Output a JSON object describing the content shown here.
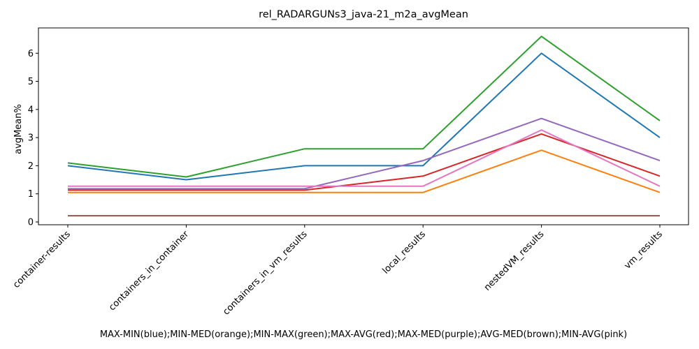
{
  "chart_data": {
    "type": "line",
    "title": "rel_RADARGUNs3_java-21_m2a_avgMean",
    "xlabel": "MAX-MIN(blue);MIN-MED(orange);MIN-MAX(green);MAX-AVG(red);MAX-MED(purple);AVG-MED(brown);MIN-AVG(pink)",
    "ylabel": "avgMean%",
    "categories": [
      "container-results",
      "containers_in_container",
      "containers_in_vm_results",
      "local_results",
      "nestedVM_results",
      "vm_results"
    ],
    "yticks": [
      0,
      1,
      2,
      3,
      4,
      5,
      6
    ],
    "ylim": [
      -0.1,
      6.9
    ],
    "grid": false,
    "series": [
      {
        "color": "#1f77b4",
        "values": [
          2.0,
          1.5,
          2.0,
          2.0,
          6.0,
          3.0
        ]
      },
      {
        "color": "#ff7f0e",
        "values": [
          1.05,
          1.05,
          1.05,
          1.05,
          2.55,
          1.05
        ]
      },
      {
        "color": "#2ca02c",
        "values": [
          2.1,
          1.6,
          2.6,
          2.6,
          6.6,
          3.6
        ]
      },
      {
        "color": "#d62728",
        "values": [
          1.13,
          1.13,
          1.13,
          1.63,
          3.13,
          1.63
        ]
      },
      {
        "color": "#9467bd",
        "values": [
          1.18,
          1.18,
          1.18,
          2.18,
          3.68,
          2.18
        ]
      },
      {
        "color": "#8c564b",
        "values": [
          0.22,
          0.22,
          0.22,
          0.22,
          0.22,
          0.22
        ]
      },
      {
        "color": "#e377c2",
        "values": [
          1.27,
          1.27,
          1.27,
          1.27,
          3.27,
          1.27
        ]
      }
    ]
  }
}
